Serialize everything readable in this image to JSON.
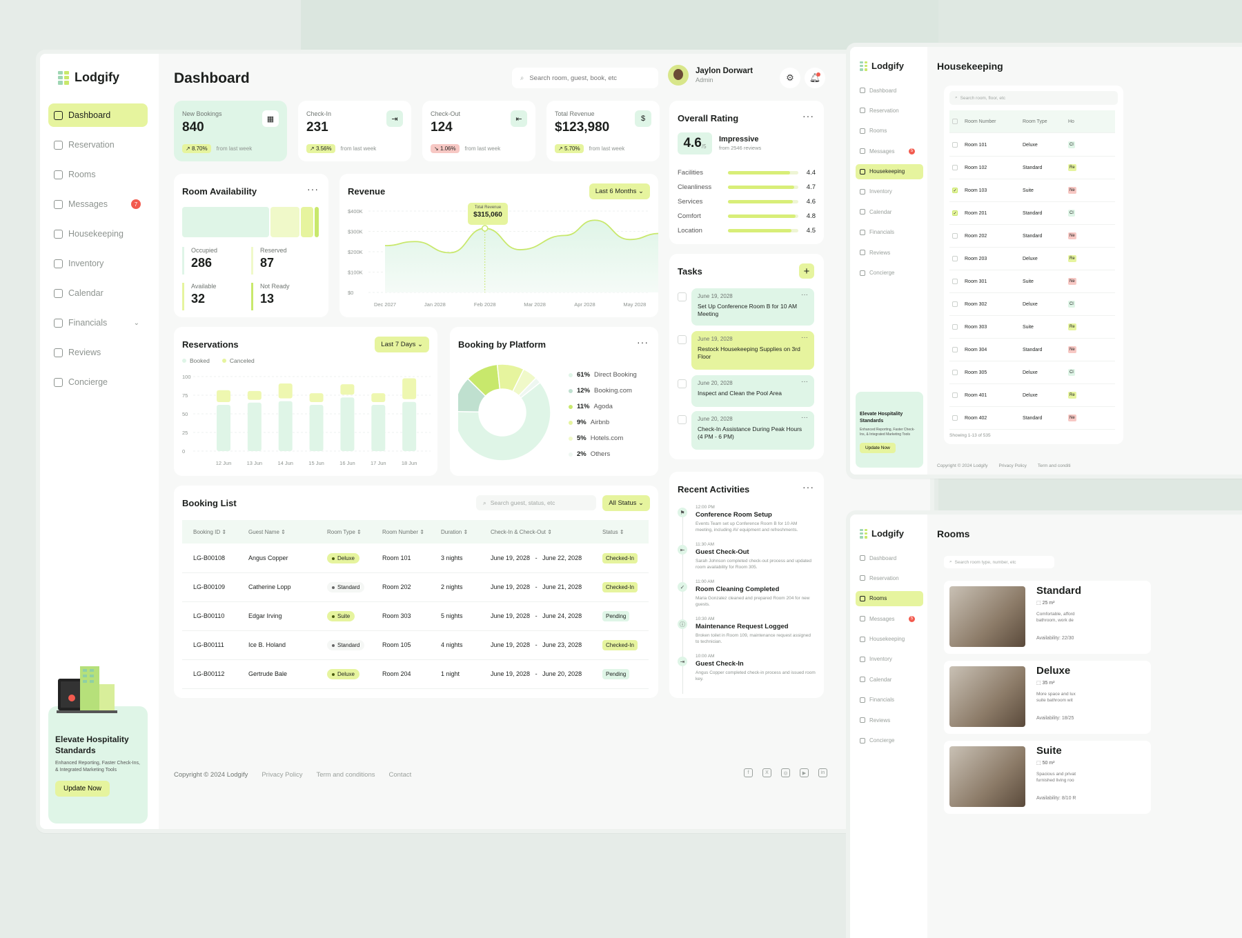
{
  "app": {
    "name": "Lodgify"
  },
  "sidebar": {
    "items": [
      {
        "label": "Dashboard",
        "icon": "grid-icon",
        "active": true
      },
      {
        "label": "Reservation",
        "icon": "calendar-check-icon"
      },
      {
        "label": "Rooms",
        "icon": "home-icon"
      },
      {
        "label": "Messages",
        "icon": "message-icon",
        "badge": "7"
      },
      {
        "label": "Housekeeping",
        "icon": "broom-icon"
      },
      {
        "label": "Inventory",
        "icon": "box-icon"
      },
      {
        "label": "Calendar",
        "icon": "calendar-icon"
      },
      {
        "label": "Financials",
        "icon": "wallet-icon",
        "chevron": true
      },
      {
        "label": "Reviews",
        "icon": "star-icon"
      },
      {
        "label": "Concierge",
        "icon": "concierge-icon"
      }
    ],
    "promo": {
      "title": "Elevate Hospitality Standards",
      "text": "Enhanced Reporting, Faster Check-Ins, & Integrated Marketing Tools",
      "button": "Update Now"
    }
  },
  "header": {
    "title": "Dashboard",
    "search_placeholder": "Search room, guest, book, etc",
    "user": {
      "name": "Jaylon Dorwart",
      "role": "Admin"
    }
  },
  "stats": [
    {
      "label": "New Bookings",
      "value": "840",
      "change": "8.70%",
      "trend": "up",
      "note": "from last week",
      "icon": "calendar-icon"
    },
    {
      "label": "Check-In",
      "value": "231",
      "change": "3.56%",
      "trend": "up",
      "note": "from last week",
      "icon": "login-icon"
    },
    {
      "label": "Check-Out",
      "value": "124",
      "change": "1.06%",
      "trend": "down",
      "note": "from last week",
      "icon": "logout-icon"
    },
    {
      "label": "Total Revenue",
      "value": "$123,980",
      "change": "5.70%",
      "trend": "up",
      "note": "from last week",
      "icon": "dollar-icon"
    }
  ],
  "room_availability": {
    "title": "Room Availability",
    "items": [
      {
        "label": "Occupied",
        "value": "286"
      },
      {
        "label": "Reserved",
        "value": "87"
      },
      {
        "label": "Available",
        "value": "32"
      },
      {
        "label": "Not Ready",
        "value": "13"
      }
    ],
    "colors": [
      "#dff5e7",
      "#f0f9c9",
      "#e6f49e",
      "#c8e86c"
    ]
  },
  "revenue": {
    "title": "Revenue",
    "filter": "Last 6 Months",
    "tooltip_label": "Total Revenue",
    "tooltip_value": "$315,060"
  },
  "reservations": {
    "title": "Reservations",
    "filter": "Last 7 Days",
    "legend": [
      "Booked",
      "Canceled"
    ]
  },
  "platform": {
    "title": "Booking by Platform",
    "items": [
      {
        "pct": "61%",
        "name": "Direct Booking",
        "color": "#dff5e7"
      },
      {
        "pct": "12%",
        "name": "Booking.com",
        "color": "#bfe0cf"
      },
      {
        "pct": "11%",
        "name": "Agoda",
        "color": "#c8e86c"
      },
      {
        "pct": "9%",
        "name": "Airbnb",
        "color": "#e6f49e"
      },
      {
        "pct": "5%",
        "name": "Hotels.com",
        "color": "#f0f9c9"
      },
      {
        "pct": "2%",
        "name": "Others",
        "color": "#eef7f1"
      }
    ]
  },
  "rating": {
    "title": "Overall Rating",
    "score": "4.6",
    "out_of": "/5",
    "label": "Impressive",
    "reviews": "from 2546 reviews",
    "facets": [
      {
        "name": "Facilities",
        "score": "4.4",
        "value": 4.4
      },
      {
        "name": "Cleanliness",
        "score": "4.7",
        "value": 4.7
      },
      {
        "name": "Services",
        "score": "4.6",
        "value": 4.6
      },
      {
        "name": "Comfort",
        "score": "4.8",
        "value": 4.8
      },
      {
        "name": "Location",
        "score": "4.5",
        "value": 4.5
      }
    ]
  },
  "tasks": {
    "title": "Tasks",
    "items": [
      {
        "date": "June 19, 2028",
        "text": "Set Up Conference Room B for 10 AM Meeting",
        "color": "#dff5e7"
      },
      {
        "date": "June 19, 2028",
        "text": "Restock Housekeeping Supplies on 3rd Floor",
        "color": "#e6f49e"
      },
      {
        "date": "June 20, 2028",
        "text": "Inspect and Clean the Pool Area",
        "color": "#dff5e7"
      },
      {
        "date": "June 20, 2028",
        "text": "Check-In Assistance During Peak Hours (4 PM - 6 PM)",
        "color": "#dff5e7"
      }
    ]
  },
  "activities": {
    "title": "Recent Activities",
    "items": [
      {
        "time": "12:00 PM",
        "title": "Conference Room Setup",
        "text": "Events Team set up Conference Room B for 10 AM meeting, including AV equipment and refreshments."
      },
      {
        "time": "11:30 AM",
        "title": "Guest Check-Out",
        "text": "Sarah Johnson completed check-out process and updated room availability for Room 305."
      },
      {
        "time": "11:00 AM",
        "title": "Room Cleaning Completed",
        "text": "Maria Gonzalez cleaned and prepared Room 204 for new guests."
      },
      {
        "time": "10:30 AM",
        "title": "Maintenance Request Logged",
        "text": "Broken toilet in Room 109, maintenance request assigned to technician."
      },
      {
        "time": "10:00 AM",
        "title": "Guest Check-In",
        "text": "Angus Copper completed check-in process and issued room key."
      }
    ]
  },
  "booking_list": {
    "title": "Booking List",
    "search_placeholder": "Search guest, status, etc",
    "filter": "All Status",
    "columns": [
      "Booking ID",
      "Guest Name",
      "Room Type",
      "Room Number",
      "Duration",
      "Check-In & Check-Out",
      "Status"
    ],
    "rows": [
      {
        "id": "LG-B00108",
        "guest": "Angus Copper",
        "type": "Deluxe",
        "room": "Room 101",
        "duration": "3 nights",
        "in": "June 19, 2028",
        "out": "June 22, 2028",
        "status": "Checked-In"
      },
      {
        "id": "LG-B00109",
        "guest": "Catherine Lopp",
        "type": "Standard",
        "room": "Room 202",
        "duration": "2 nights",
        "in": "June 19, 2028",
        "out": "June 21, 2028",
        "status": "Checked-In"
      },
      {
        "id": "LG-B00110",
        "guest": "Edgar Irving",
        "type": "Suite",
        "room": "Room 303",
        "duration": "5 nights",
        "in": "June 19, 2028",
        "out": "June 24, 2028",
        "status": "Pending"
      },
      {
        "id": "LG-B00111",
        "guest": "Ice B. Holand",
        "type": "Standard",
        "room": "Room 105",
        "duration": "4 nights",
        "in": "June 19, 2028",
        "out": "June 23, 2028",
        "status": "Checked-In"
      },
      {
        "id": "LG-B00112",
        "guest": "Gertrude Bale",
        "type": "Deluxe",
        "room": "Room 204",
        "duration": "1 night",
        "in": "June 19, 2028",
        "out": "June 20, 2028",
        "status": "Pending"
      }
    ]
  },
  "footer": {
    "copyright": "Copyright © 2024 Lodgify",
    "links": [
      "Privacy Policy",
      "Term and conditions",
      "Contact"
    ]
  },
  "housekeeping": {
    "title": "Housekeeping",
    "search_placeholder": "Search room, floor, etc",
    "columns": [
      "Room Number",
      "Room Type",
      "Ho"
    ],
    "rows": [
      {
        "room": "Room 101",
        "type": "Deluxe",
        "checked": false,
        "status_color": "#dff5e7",
        "status": "Cl"
      },
      {
        "room": "Room 102",
        "type": "Standard",
        "checked": false,
        "status_color": "#e6f49e",
        "status": "Re"
      },
      {
        "room": "Room 103",
        "type": "Suite",
        "checked": true,
        "status_color": "#f7c8c4",
        "status": "Ne"
      },
      {
        "room": "Room 201",
        "type": "Standard",
        "checked": true,
        "status_color": "#dff5e7",
        "status": "Cl"
      },
      {
        "room": "Room 202",
        "type": "Standard",
        "checked": false,
        "status_color": "#f7c8c4",
        "status": "Ne"
      },
      {
        "room": "Room 203",
        "type": "Deluxe",
        "checked": false,
        "status_color": "#e6f49e",
        "status": "Re"
      },
      {
        "room": "Room 301",
        "type": "Suite",
        "checked": false,
        "status_color": "#f7c8c4",
        "status": "Ne"
      },
      {
        "room": "Room 302",
        "type": "Deluxe",
        "checked": false,
        "status_color": "#dff5e7",
        "status": "Cl"
      },
      {
        "room": "Room 303",
        "type": "Suite",
        "checked": false,
        "status_color": "#e6f49e",
        "status": "Re"
      },
      {
        "room": "Room 304",
        "type": "Standard",
        "checked": false,
        "status_color": "#f7c8c4",
        "status": "Ne"
      },
      {
        "room": "Room 305",
        "type": "Deluxe",
        "checked": false,
        "status_color": "#dff5e7",
        "status": "Cl"
      },
      {
        "room": "Room 401",
        "type": "Deluxe",
        "checked": false,
        "status_color": "#e6f49e",
        "status": "Re"
      },
      {
        "room": "Room 402",
        "type": "Standard",
        "checked": false,
        "status_color": "#f7c8c4",
        "status": "Ne"
      }
    ],
    "showing": "Showing 1-13 of 535",
    "copyright": "Copyright © 2024 Lodgify",
    "links": [
      "Privacy Policy",
      "Term and conditi"
    ]
  },
  "rooms_page": {
    "title": "Rooms",
    "search_placeholder": "Search room type, number, etc",
    "rooms": [
      {
        "name": "Standard",
        "size": "25 m²",
        "desc": "Comfortable, afford bathroom, work de",
        "avail": "Availability:  22/30"
      },
      {
        "name": "Deluxe",
        "size": "35 m²",
        "desc": "More space and lux suite bathroom wit",
        "avail": "Availability:  18/25"
      },
      {
        "name": "Suite",
        "size": "50 m²",
        "desc": "Spacious and privat furnished living roo",
        "avail": "Availability:  8/10 R"
      }
    ]
  },
  "chart_data": [
    {
      "type": "area",
      "title": "Revenue",
      "x": [
        "Dec 2027",
        "Jan 2028",
        "Feb 2028",
        "Mar 2028",
        "Apr 2028",
        "May 2028"
      ],
      "yticks": [
        "$400K",
        "$300K",
        "$200K",
        "$100K",
        "$0"
      ],
      "ylim": [
        0,
        400000
      ],
      "points": [
        [
          0,
          230000
        ],
        [
          0.6,
          250000
        ],
        [
          1.3,
          195000
        ],
        [
          2,
          315060
        ],
        [
          2.7,
          210000
        ],
        [
          3.6,
          280000
        ],
        [
          4.2,
          355000
        ],
        [
          4.9,
          260000
        ],
        [
          5.5,
          290000
        ]
      ],
      "highlight": {
        "x": "Feb 2028",
        "value": 315060
      },
      "color": "#c8e86c"
    },
    {
      "type": "bar",
      "title": "Reservations",
      "categories": [
        "12 Jun",
        "13 Jun",
        "14 Jun",
        "15 Jun",
        "16 Jun",
        "17 Jun",
        "18 Jun"
      ],
      "yticks": [
        "100",
        "75",
        "50",
        "25",
        "0"
      ],
      "ylim": [
        0,
        100
      ],
      "series": [
        {
          "name": "Booked",
          "values": [
            62,
            65,
            67,
            62,
            72,
            62,
            66
          ],
          "color": "#dff5e7"
        },
        {
          "name": "Canceled",
          "values": [
            16,
            12,
            20,
            12,
            14,
            12,
            28
          ],
          "color": "#eef7b0"
        }
      ]
    },
    {
      "type": "pie",
      "title": "Booking by Platform",
      "labels": [
        "Direct Booking",
        "Booking.com",
        "Agoda",
        "Airbnb",
        "Hotels.com",
        "Others"
      ],
      "values": [
        61,
        12,
        11,
        9,
        5,
        2
      ]
    }
  ]
}
